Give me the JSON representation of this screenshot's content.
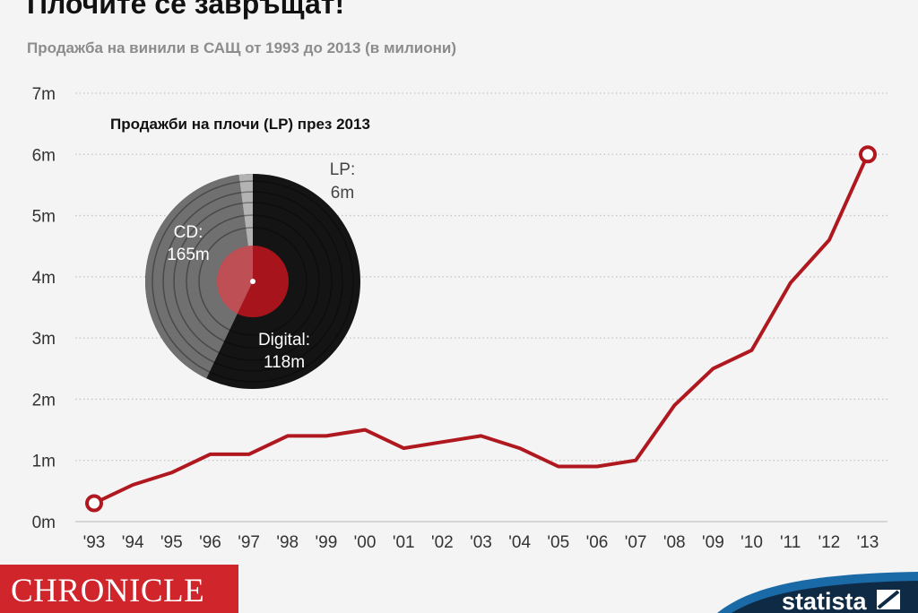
{
  "title": "Плочите се завръщат!",
  "subtitle": "Продажба на винили в САЩ от 1993 до 2013 (в милиони)",
  "chart_data": {
    "type": "line",
    "categories": [
      "'93",
      "'94",
      "'95",
      "'96",
      "'97",
      "'98",
      "'99",
      "'00",
      "'01",
      "'02",
      "'03",
      "'04",
      "'05",
      "'06",
      "'07",
      "'08",
      "'09",
      "'10",
      "'11",
      "'12",
      "'13"
    ],
    "series": [
      {
        "values": [
          0.3,
          0.6,
          0.8,
          1.1,
          1.1,
          1.4,
          1.4,
          1.5,
          1.2,
          1.3,
          1.4,
          1.2,
          0.9,
          0.9,
          1.0,
          1.9,
          2.5,
          2.8,
          3.9,
          4.6,
          6.0
        ]
      }
    ],
    "yticks": [
      "0m",
      "1m",
      "2m",
      "3m",
      "4m",
      "5m",
      "6m",
      "7m"
    ],
    "ylim": [
      0,
      7
    ],
    "grid": "horizontal dotted",
    "line_color": "#b01820",
    "inset": {
      "type": "pie",
      "title": "Продажби на плочи (LP) през 2013",
      "slices": [
        {
          "label": "CD:",
          "value_label": "165m",
          "value": 165
        },
        {
          "label": "Digital:",
          "value_label": "118m",
          "value": 118
        },
        {
          "label": "LP:",
          "value_label": "6m",
          "value": 6
        }
      ]
    }
  },
  "footer": {
    "brand_left": "CHRONICLE",
    "brand_right": "statista",
    "brand_left_color": "#d0252b",
    "brand_right_color": "#0f2a44"
  }
}
